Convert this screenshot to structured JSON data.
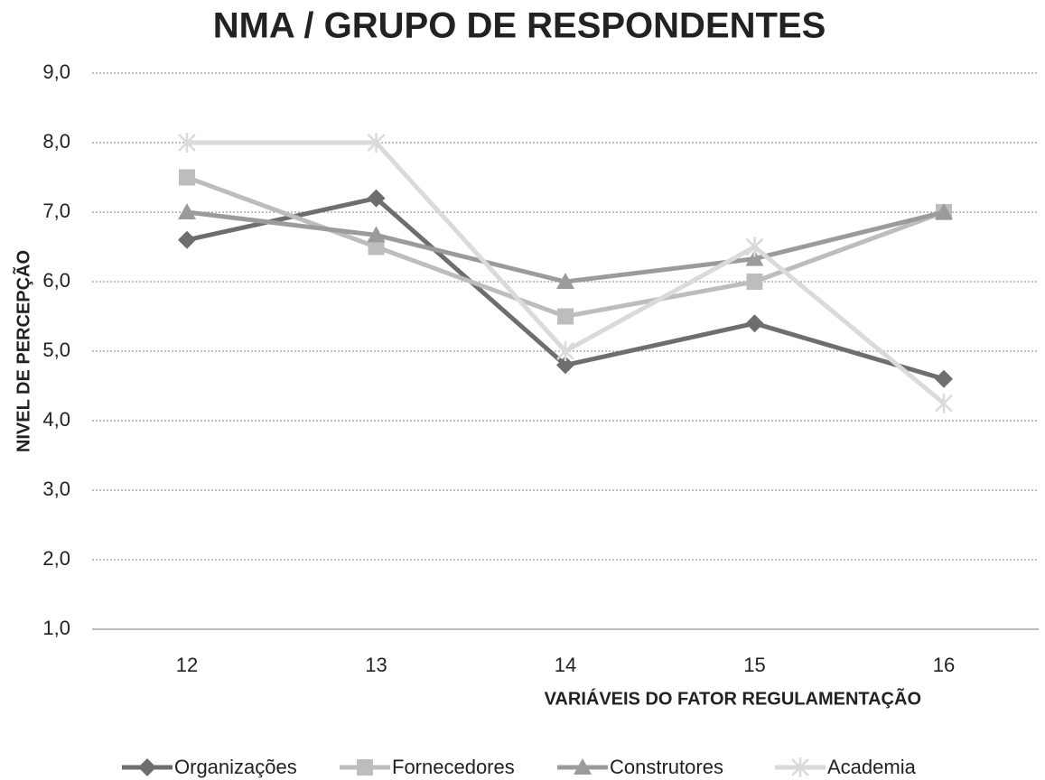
{
  "chart_data": {
    "type": "line",
    "title": "NMA / GRUPO DE RESPONDENTES",
    "x_label": "VARIÁVEIS DO FATOR REGULAMENTAÇÃO",
    "y_label": "NIVEL  DE PERCEPÇÃO",
    "categories": [
      "12",
      "13",
      "14",
      "15",
      "16"
    ],
    "series": [
      {
        "name": "Organizações",
        "color": "#6e6e70",
        "marker": "diamond",
        "values": [
          6.6,
          7.2,
          4.8,
          5.4,
          4.6
        ]
      },
      {
        "name": "Fornecedores",
        "color": "#bdbdbd",
        "marker": "square",
        "values": [
          7.5,
          6.5,
          5.5,
          6.0,
          7.0
        ]
      },
      {
        "name": "Construtores",
        "color": "#9b9b9d",
        "marker": "triangle",
        "values": [
          7.0,
          6.67,
          6.0,
          6.33,
          7.0
        ]
      },
      {
        "name": "Academia",
        "color": "#dadada",
        "marker": "star",
        "values": [
          8.0,
          8.0,
          5.0,
          6.5,
          4.25
        ]
      }
    ],
    "ylim": [
      1,
      9
    ],
    "yticks": [
      {
        "value": 1,
        "label": "1,0"
      },
      {
        "value": 2,
        "label": "2,0"
      },
      {
        "value": 3,
        "label": "3,0"
      },
      {
        "value": 4,
        "label": "4,0"
      },
      {
        "value": 5,
        "label": "5,0"
      },
      {
        "value": 6,
        "label": "6,0"
      },
      {
        "value": 7,
        "label": "7,0"
      },
      {
        "value": 8,
        "label": "8,0"
      },
      {
        "value": 9,
        "label": "9,0"
      }
    ],
    "grid": true,
    "legend": "bottom"
  }
}
